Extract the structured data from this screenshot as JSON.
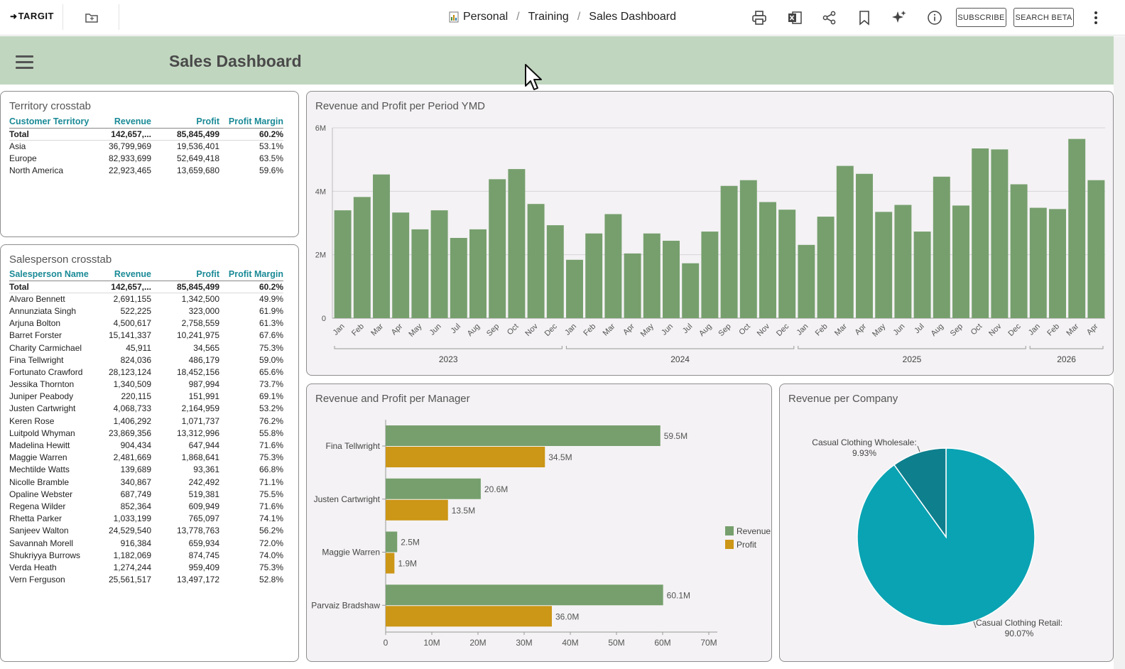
{
  "header": {
    "logo_text": "TARGIT",
    "breadcrumb": [
      "Personal",
      "Training",
      "Sales Dashboard"
    ],
    "subscribe_label": "SUBSCRIBE",
    "search_label": "SEARCH BETA"
  },
  "dashboard": {
    "title": "Sales Dashboard"
  },
  "territory": {
    "title": "Territory crosstab",
    "columns": [
      "Customer Territory",
      "Revenue",
      "Profit",
      "Profit Margin"
    ],
    "total": [
      "Total",
      "142,657,...",
      "85,845,499",
      "60.2%"
    ],
    "rows": [
      [
        "Asia",
        "36,799,969",
        "19,536,401",
        "53.1%"
      ],
      [
        "Europe",
        "82,933,699",
        "52,649,418",
        "63.5%"
      ],
      [
        "North America",
        "22,923,465",
        "13,659,680",
        "59.6%"
      ]
    ]
  },
  "salesperson": {
    "title": "Salesperson crosstab",
    "columns": [
      "Salesperson Name",
      "Revenue",
      "Profit",
      "Profit Margin"
    ],
    "total": [
      "Total",
      "142,657,...",
      "85,845,499",
      "60.2%"
    ],
    "rows": [
      [
        "Alvaro Bennett",
        "2,691,155",
        "1,342,500",
        "49.9%"
      ],
      [
        "Annunziata Singh",
        "522,225",
        "323,000",
        "61.9%"
      ],
      [
        "Arjuna Bolton",
        "4,500,617",
        "2,758,559",
        "61.3%"
      ],
      [
        "Barret Forster",
        "15,141,337",
        "10,241,975",
        "67.6%"
      ],
      [
        "Charity Carmichael",
        "45,911",
        "34,565",
        "75.3%"
      ],
      [
        "Fina Tellwright",
        "824,036",
        "486,179",
        "59.0%"
      ],
      [
        "Fortunato Crawford",
        "28,123,124",
        "18,452,156",
        "65.6%"
      ],
      [
        "Jessika Thornton",
        "1,340,509",
        "987,994",
        "73.7%"
      ],
      [
        "Juniper Peabody",
        "220,115",
        "151,991",
        "69.1%"
      ],
      [
        "Justen Cartwright",
        "4,068,733",
        "2,164,959",
        "53.2%"
      ],
      [
        "Keren Rose",
        "1,406,292",
        "1,071,737",
        "76.2%"
      ],
      [
        "Luitpold Whyman",
        "23,869,356",
        "13,312,996",
        "55.8%"
      ],
      [
        "Madelina Hewitt",
        "904,434",
        "647,944",
        "71.6%"
      ],
      [
        "Maggie Warren",
        "2,481,669",
        "1,868,641",
        "75.3%"
      ],
      [
        "Mechtilde Watts",
        "139,689",
        "93,361",
        "66.8%"
      ],
      [
        "Nicolle Bramble",
        "340,867",
        "242,492",
        "71.1%"
      ],
      [
        "Opaline Webster",
        "687,749",
        "519,381",
        "75.5%"
      ],
      [
        "Regena Wilder",
        "852,364",
        "609,949",
        "71.6%"
      ],
      [
        "Rhetta Parker",
        "1,033,199",
        "765,097",
        "74.1%"
      ],
      [
        "Sanjeev Walton",
        "24,529,540",
        "13,778,763",
        "56.2%"
      ],
      [
        "Savannah Morell",
        "916,384",
        "659,934",
        "72.0%"
      ],
      [
        "Shukriyya Burrows",
        "1,182,069",
        "874,745",
        "74.0%"
      ],
      [
        "Verda Heath",
        "1,274,244",
        "959,409",
        "75.3%"
      ],
      [
        "Vern Ferguson",
        "25,561,517",
        "13,497,172",
        "52.8%"
      ]
    ]
  },
  "chart_data": [
    {
      "type": "bar",
      "title": "Revenue and Profit per Period YMD",
      "ylim": [
        0,
        6
      ],
      "yticks": [
        "0",
        "2M",
        "4M",
        "6M"
      ],
      "ytick_values": [
        0,
        2,
        4,
        6
      ],
      "groups": [
        "2023",
        "2024",
        "2025",
        "2026"
      ],
      "group_sizes": [
        12,
        12,
        12,
        4
      ],
      "categories": [
        "Jan",
        "Feb",
        "Mar",
        "Apr",
        "May",
        "Jun",
        "Jul",
        "Aug",
        "Sep",
        "Oct",
        "Nov",
        "Dec",
        "Jan",
        "Feb",
        "Mar",
        "Apr",
        "May",
        "Jun",
        "Jul",
        "Aug",
        "Sep",
        "Oct",
        "Nov",
        "Dec",
        "Jan",
        "Feb",
        "Mar",
        "Apr",
        "May",
        "Jun",
        "Jul",
        "Aug",
        "Sep",
        "Oct",
        "Nov",
        "Dec",
        "Jan",
        "Feb",
        "Mar",
        "Apr"
      ],
      "values": [
        3.4,
        3.82,
        4.53,
        3.33,
        2.8,
        3.4,
        2.53,
        2.8,
        4.38,
        4.7,
        3.6,
        2.93,
        1.84,
        2.67,
        3.28,
        2.04,
        2.67,
        2.44,
        1.73,
        2.73,
        4.17,
        4.35,
        3.66,
        3.42,
        2.31,
        3.2,
        4.8,
        4.55,
        3.35,
        3.57,
        2.73,
        4.46,
        3.55,
        5.35,
        5.32,
        4.22,
        3.48,
        3.44,
        5.65,
        4.35
      ],
      "color": "#769f6d"
    },
    {
      "type": "bar",
      "title": "Revenue and Profit per Manager",
      "orientation": "horizontal",
      "categories": [
        "Fina Tellwright",
        "Justen Cartwright",
        "Maggie Warren",
        "Parvaiz Bradshaw"
      ],
      "series": [
        {
          "name": "Revenue",
          "values": [
            59.5,
            20.6,
            2.5,
            60.1
          ],
          "labels": [
            "59.5M",
            "20.6M",
            "2.5M",
            "60.1M"
          ],
          "color": "#769f6d"
        },
        {
          "name": "Profit",
          "values": [
            34.5,
            13.5,
            1.9,
            36.0
          ],
          "labels": [
            "34.5M",
            "13.5M",
            "1.9M",
            "36.0M"
          ],
          "color": "#cc9616"
        }
      ],
      "xlim": [
        0,
        70
      ],
      "xticks": [
        "0",
        "10M",
        "20M",
        "30M",
        "40M",
        "50M",
        "60M",
        "70M"
      ],
      "xtick_values": [
        0,
        10,
        20,
        30,
        40,
        50,
        60,
        70
      ],
      "legend": "right"
    },
    {
      "type": "pie",
      "title": "Revenue per Company",
      "slices": [
        {
          "label": "Casual Clothing Wholesale:",
          "pct_label": "9.93%",
          "value": 9.93,
          "color": "#0e7f8d"
        },
        {
          "label": "Casual Clothing Retail:",
          "pct_label": "90.07%",
          "value": 90.07,
          "color": "#0aa3b3"
        }
      ]
    }
  ]
}
